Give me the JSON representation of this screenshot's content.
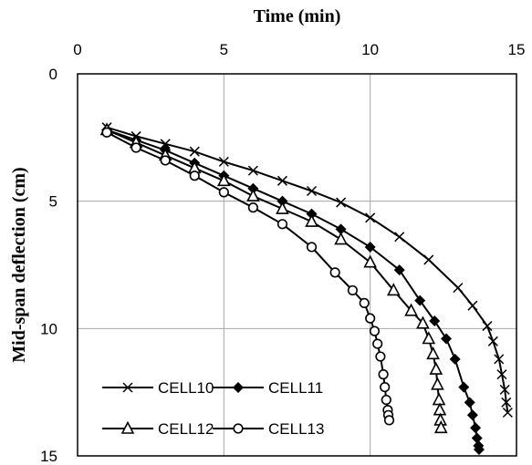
{
  "chart_data": {
    "type": "line",
    "xlabel": "Time (min)",
    "ylabel": "Mid-span deflection (cm)",
    "xlim": [
      0,
      15
    ],
    "ylim": [
      0,
      15
    ],
    "y_inverted": true,
    "x_axis_position": "top",
    "xticks": [
      "0",
      "5",
      "10",
      "15"
    ],
    "yticks": [
      "0",
      "5",
      "10",
      "15"
    ],
    "grid": true,
    "legend_position": "bottom-left",
    "series": [
      {
        "name": "CELL10",
        "marker": "x",
        "x": [
          1,
          2,
          3,
          4,
          5,
          6,
          7,
          8,
          9,
          10,
          11,
          12,
          13,
          13.5,
          14,
          14.2,
          14.4,
          14.5,
          14.6,
          14.65,
          14.7
        ],
        "y": [
          2.1,
          2.45,
          2.75,
          3.05,
          3.45,
          3.8,
          4.2,
          4.6,
          5.05,
          5.65,
          6.4,
          7.3,
          8.4,
          9.1,
          9.9,
          10.5,
          11.2,
          11.8,
          12.4,
          12.9,
          13.3
        ]
      },
      {
        "name": "CELL11",
        "marker": "diamond",
        "x": [
          1,
          2,
          3,
          4,
          5,
          6,
          7,
          8,
          9,
          10,
          11,
          11.7,
          12.2,
          12.6,
          12.9,
          13.2,
          13.4,
          13.5,
          13.6,
          13.65,
          13.7,
          13.72
        ],
        "y": [
          2.2,
          2.6,
          3.0,
          3.5,
          4.0,
          4.5,
          5.0,
          5.5,
          6.1,
          6.8,
          7.7,
          8.9,
          9.7,
          10.4,
          11.2,
          12.3,
          12.9,
          13.4,
          13.9,
          14.3,
          14.6,
          14.75
        ]
      },
      {
        "name": "CELL12",
        "marker": "triangle",
        "x": [
          1,
          2,
          3,
          4,
          5,
          6,
          7,
          8,
          9,
          10,
          10.8,
          11.4,
          11.8,
          12.0,
          12.15,
          12.25,
          12.3,
          12.35,
          12.38,
          12.4,
          12.42
        ],
        "y": [
          2.2,
          2.7,
          3.2,
          3.7,
          4.2,
          4.8,
          5.3,
          5.8,
          6.5,
          7.4,
          8.5,
          9.3,
          9.8,
          10.4,
          11.0,
          11.6,
          12.2,
          12.8,
          13.2,
          13.6,
          13.9
        ]
      },
      {
        "name": "CELL13",
        "marker": "circle",
        "x": [
          1,
          2,
          3,
          4,
          5,
          6,
          7,
          8,
          8.8,
          9.4,
          9.8,
          10.0,
          10.15,
          10.25,
          10.35,
          10.45,
          10.5,
          10.55,
          10.6,
          10.62,
          10.65
        ],
        "y": [
          2.3,
          2.9,
          3.4,
          4.0,
          4.65,
          5.25,
          5.9,
          6.8,
          7.8,
          8.5,
          9.0,
          9.6,
          10.1,
          10.6,
          11.1,
          11.8,
          12.3,
          12.8,
          13.2,
          13.4,
          13.6
        ]
      }
    ]
  }
}
